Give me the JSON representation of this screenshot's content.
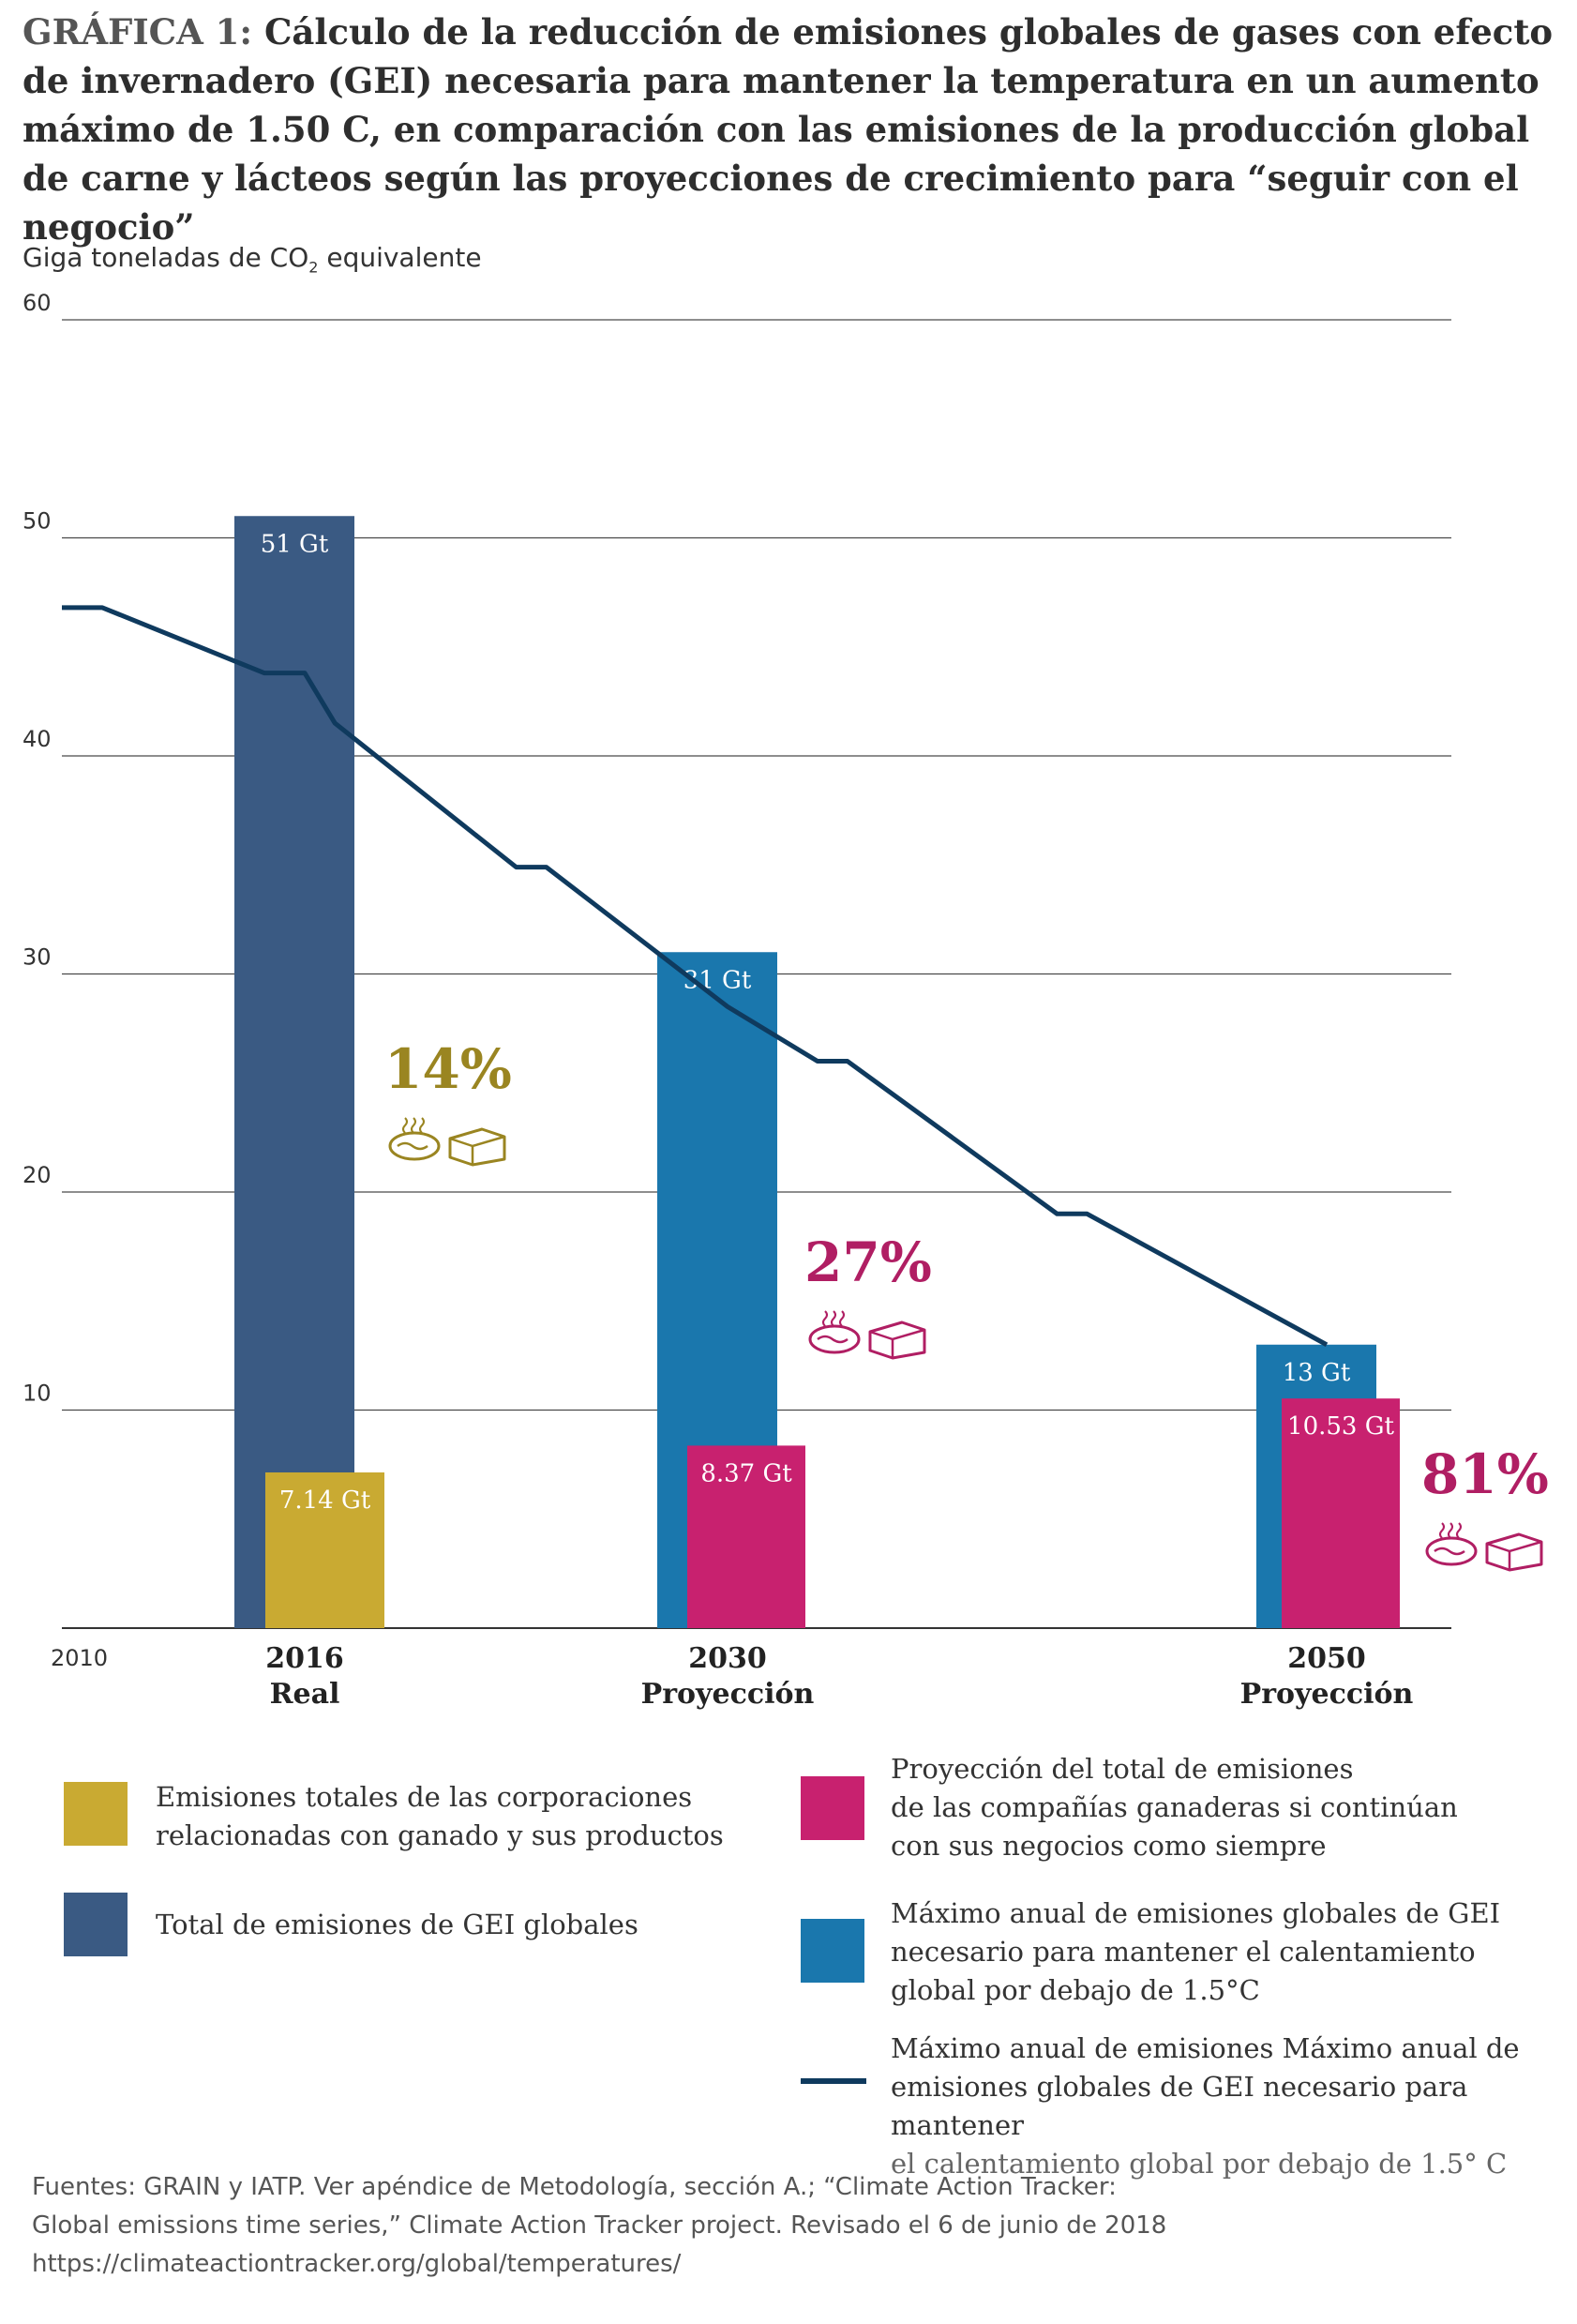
{
  "title": {
    "prefix": "GRÁFICA 1:",
    "text": "Cálculo de la reducción de emisiones globales de gases con efecto de invernadero (GEI) necesaria para mantener la temperatura en un aumento máximo de 1.50 C, en comparación con las emisiones de la producción global de carne y lácteos según las proyecciones de crecimiento para “seguir con el negocio”"
  },
  "y_axis": {
    "label_main": "Giga toneladas de CO",
    "label_sub": "2",
    "label_tail": " equivalente"
  },
  "chart_data": {
    "type": "bar",
    "ylim": [
      0,
      60
    ],
    "yticks": [
      "10",
      "20",
      "30",
      "40",
      "50",
      "60"
    ],
    "x_start_label": "2010",
    "categories": [
      {
        "year": "2016",
        "sub": "Real"
      },
      {
        "year": "2030",
        "sub": "Proyección"
      },
      {
        "year": "2050",
        "sub": "Proyección"
      }
    ],
    "series": [
      {
        "name": "Total de emisiones de GEI globales",
        "color": "#3a5a83",
        "values": [
          51,
          null,
          null
        ],
        "labels": [
          "51 Gt",
          "",
          ""
        ]
      },
      {
        "name": "Máximo anual de emisiones globales de GEI necesario para mantener el calentamiento global por debajo de 1.5°C",
        "color": "#1a77ad",
        "values": [
          null,
          31,
          13
        ],
        "labels": [
          "",
          "31 Gt",
          "13 Gt"
        ]
      },
      {
        "name": "Emisiones totales de las corporaciones relacionadas con ganado y sus productos",
        "color": "#c9aa32",
        "values": [
          7.14,
          null,
          null
        ],
        "labels": [
          "7.14 Gt",
          "",
          ""
        ]
      },
      {
        "name": "Proyección del total de emisiones de las compañías ganaderas si continúan con sus negocios como siempre",
        "color": "#c8216f",
        "values": [
          null,
          8.37,
          10.53
        ],
        "labels": [
          "",
          "8.37 Gt",
          "10.53 Gt"
        ]
      }
    ],
    "line": {
      "name": "Máximo anual de emisiones Máximo anual de emisiones globales de GEI necesario para mantener el calentamiento global por debajo de 1.5° C",
      "color": "#0f3a5e",
      "x": [
        2010,
        2011,
        2015,
        2016,
        2017,
        2023,
        2024,
        2030,
        2033,
        2034,
        2041,
        2042,
        2050
      ],
      "y": [
        46.8,
        46.8,
        43.8,
        43.8,
        41.5,
        34.9,
        34.9,
        28.5,
        26.0,
        26.0,
        19.0,
        19.0,
        13.0
      ]
    },
    "percentages": [
      {
        "value": "14%",
        "color": "#9a8521"
      },
      {
        "value": "27%",
        "color": "#b01e63"
      },
      {
        "value": "81%",
        "color": "#b01e63"
      }
    ],
    "grid": true
  },
  "legend": {
    "yellow": "Emisiones totales de las corporaciones relacionadas con ganado y sus productos",
    "yellow_lines": [
      "Emisiones totales de las corporaciones",
      "relacionadas con ganado y sus productos"
    ],
    "navy_lines": [
      "Total de emisiones de GEI globales"
    ],
    "magenta_lines": [
      "Proyección del total de emisiones",
      "de las compañías ganaderas si continúan",
      "con sus negocios como siempre"
    ],
    "blue_lines": [
      "Máximo anual de emisiones globales de GEI",
      "necesario para mantener el calentamiento",
      "global por debajo de 1.5°C"
    ],
    "line_lines": [
      "Máximo anual de emisiones Máximo anual de",
      "emisiones globales de GEI necesario para mantener",
      "el calentamiento global por debajo de 1.5° C"
    ]
  },
  "sources": [
    "Fuentes: GRAIN y IATP. Ver apéndice de Metodología, sección A.; “Climate Action Tracker:",
    "Global emissions time series,” Climate Action Tracker project. Revisado el 6 de junio de 2018",
    "https://climateactiontracker.org/global/temperatures/"
  ]
}
